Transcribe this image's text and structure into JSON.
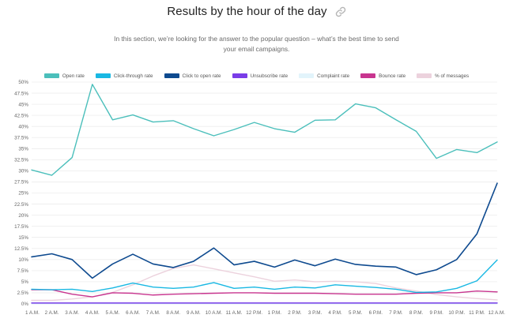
{
  "header": {
    "title": "Results by the hour of the day",
    "subtitle": "In this section, we’re looking for the answer to the popular question – what’s the best time to send your email campaigns."
  },
  "icons": {
    "link": "link-icon"
  },
  "chart_data": {
    "type": "line",
    "xlabel": "",
    "ylabel": "",
    "ylim": [
      0,
      50
    ],
    "y_tick_step": 2.5,
    "y_tick_format": "percent",
    "grid": true,
    "legend_position": "top-center",
    "categories": [
      "1 A.M.",
      "2 A.M.",
      "3 A.M.",
      "4 A.M.",
      "5 A.M.",
      "6 A.M.",
      "7 A.M.",
      "8 A.M.",
      "9 A.M.",
      "10 A.M.",
      "11 A.M.",
      "12 P.M.",
      "1 P.M.",
      "2 P.M.",
      "3 P.M.",
      "4 P.M.",
      "5 P.M.",
      "6 P.M.",
      "7 P.M.",
      "8 P.M.",
      "9 P.M.",
      "10 P.M.",
      "11 P.M.",
      "12 A.M."
    ],
    "series": [
      {
        "name": "Open rate",
        "color": "#4bbfbb",
        "fill": "#4bbfbb",
        "values": [
          30.2,
          29,
          33,
          49.5,
          41.5,
          42.6,
          41,
          41.3,
          39.5,
          37.9,
          39.3,
          40.9,
          39.5,
          38.7,
          41.4,
          41.5,
          45.1,
          44.2,
          41.5,
          38.9,
          32.8,
          34.8,
          34.1,
          36.5
        ]
      },
      {
        "name": "Click-through rate",
        "color": "#19b8e3",
        "fill": "#19b8e3",
        "values": [
          3.3,
          3.2,
          3.3,
          2.8,
          3.6,
          4.7,
          3.8,
          3.5,
          3.8,
          4.8,
          3.5,
          3.8,
          3.3,
          3.8,
          3.6,
          4.3,
          4.0,
          3.7,
          3.3,
          2.6,
          2.7,
          3.5,
          5.2,
          9.9
        ]
      },
      {
        "name": "Click to open rate",
        "color": "#0e4a8f",
        "fill": "#0e4a8f",
        "values": [
          10.6,
          11.3,
          10.0,
          5.8,
          9.0,
          11.2,
          9.0,
          8.2,
          9.6,
          12.6,
          8.8,
          9.6,
          8.3,
          9.9,
          8.6,
          10.1,
          8.9,
          8.5,
          8.3,
          6.6,
          7.7,
          10.0,
          15.8,
          27.2
        ]
      },
      {
        "name": "Unsubscribe rate",
        "color": "#7a3de8",
        "fill": "#7a3de8",
        "values": [
          0.2,
          0.2,
          0.2,
          0.2,
          0.2,
          0.2,
          0.2,
          0.2,
          0.2,
          0.2,
          0.2,
          0.2,
          0.2,
          0.2,
          0.2,
          0.2,
          0.2,
          0.2,
          0.2,
          0.2,
          0.2,
          0.2,
          0.2,
          0.2
        ]
      },
      {
        "name": "Complaint rate",
        "color": "#d7f0f9",
        "fill": "#e2f4fb",
        "values": [
          0.05,
          0.05,
          0.05,
          0.05,
          0.05,
          0.05,
          0.05,
          0.05,
          0.05,
          0.05,
          0.05,
          0.05,
          0.05,
          0.05,
          0.05,
          0.05,
          0.05,
          0.05,
          0.05,
          0.05,
          0.05,
          0.05,
          0.05,
          0.05
        ]
      },
      {
        "name": "Bounce rate",
        "color": "#c8358f",
        "fill": "#c8358f",
        "values": [
          3.2,
          3.2,
          2.2,
          1.6,
          2.5,
          2.4,
          2.0,
          2.2,
          2.3,
          2.4,
          2.5,
          2.5,
          2.4,
          2.4,
          2.4,
          2.3,
          2.2,
          2.2,
          2.2,
          2.4,
          2.5,
          2.5,
          2.9,
          2.7
        ]
      },
      {
        "name": "% of messages",
        "color": "#ecd2dd",
        "fill": "#ecd2dd",
        "values": [
          0.8,
          0.8,
          1.1,
          1.6,
          2.6,
          4.3,
          6.3,
          8.0,
          8.8,
          7.9,
          7.0,
          6.1,
          5.1,
          5.4,
          5.0,
          5.1,
          5.0,
          4.6,
          3.6,
          2.9,
          2.1,
          1.6,
          1.2,
          0.9
        ]
      }
    ]
  }
}
